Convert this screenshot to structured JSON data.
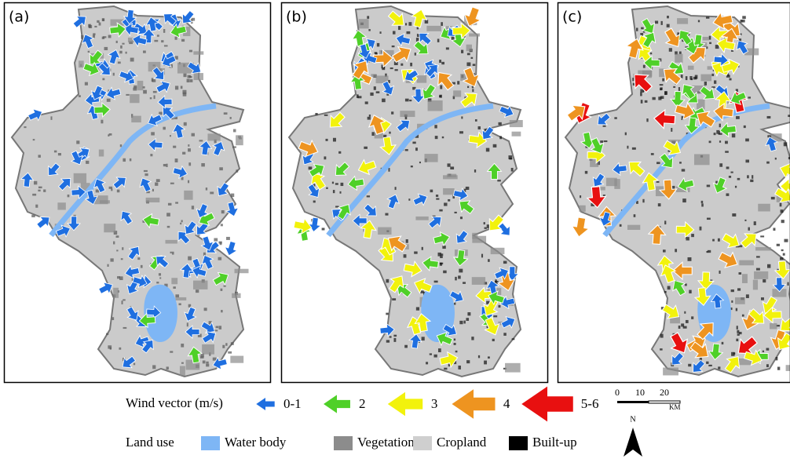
{
  "panels": [
    "(a)",
    "(b)",
    "(c)"
  ],
  "wind_legend": {
    "title": "Wind vector (m/s)",
    "classes": [
      {
        "label": "0-1",
        "color": "#1f6fe0"
      },
      {
        "label": "2",
        "color": "#4fd028"
      },
      {
        "label": "3",
        "color": "#f2f20c"
      },
      {
        "label": "4",
        "color": "#ee9420"
      },
      {
        "label": "5-6",
        "color": "#e81010"
      }
    ]
  },
  "land_use_legend": {
    "title": "Land use",
    "classes": [
      {
        "label": "Water body",
        "color": "#7eb6f5"
      },
      {
        "label": "Vegetation",
        "color": "#8c8c8c"
      },
      {
        "label": "Cropland",
        "color": "#cfcfcf"
      },
      {
        "label": "Built-up",
        "color": "#000000"
      }
    ]
  },
  "scale_bar": {
    "ticks": [
      "0",
      "10",
      "20"
    ],
    "unit": "KM"
  },
  "north": "N"
}
